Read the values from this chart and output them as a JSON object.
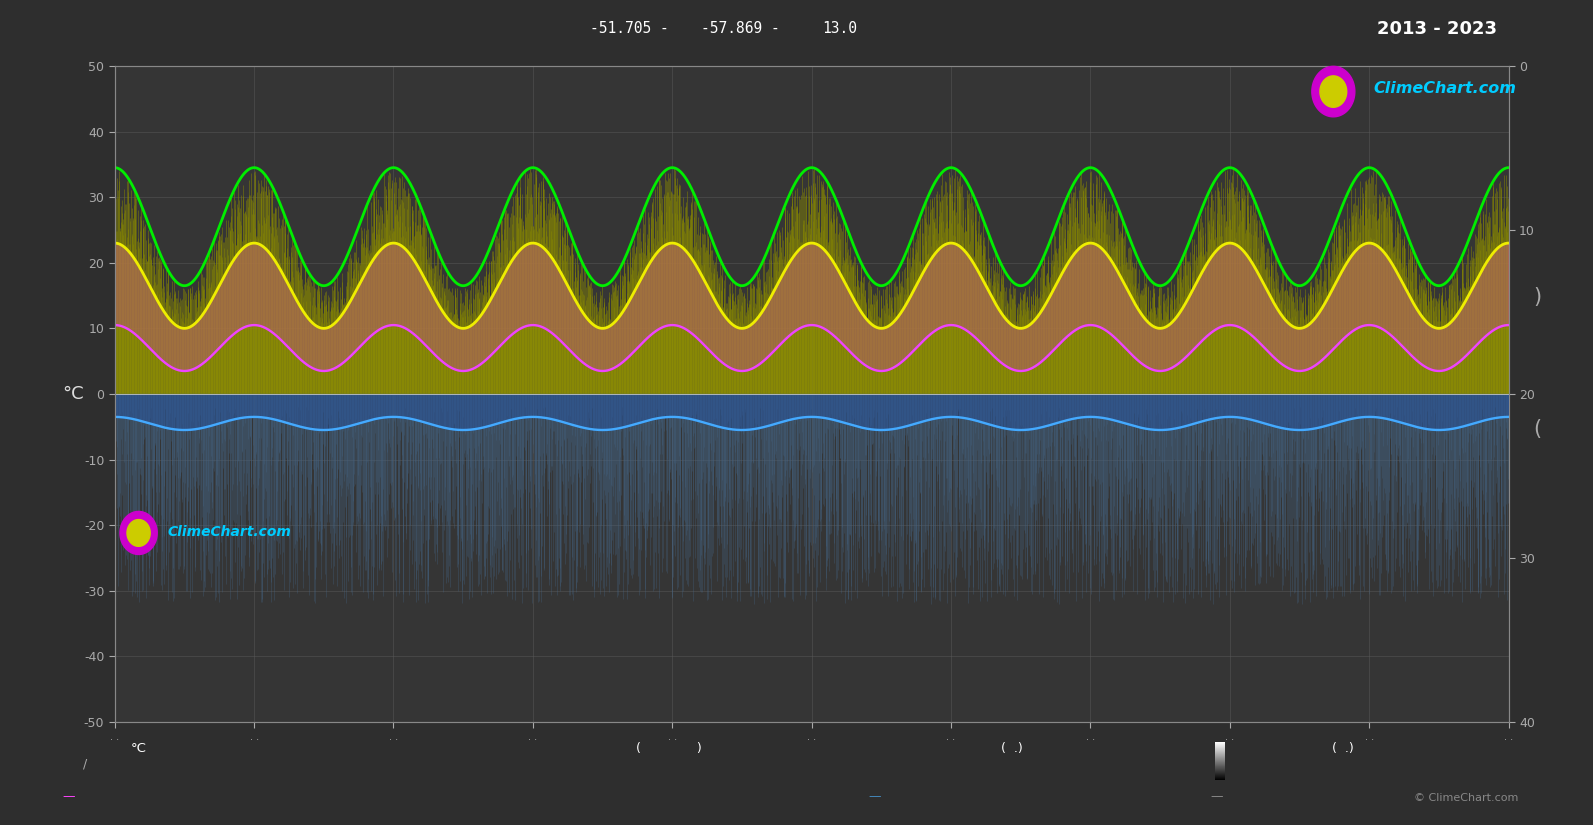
{
  "bg_color": "#2e2e2e",
  "plot_bg_color": "#353535",
  "grid_color": "#585858",
  "ylim_left": [
    -50,
    50
  ],
  "ylim_right": [
    40,
    0
  ],
  "green_line_color": "#00ee00",
  "yellow_line_color": "#eeee00",
  "magenta_line_color": "#ee44ff",
  "blue_line_color": "#44aaff",
  "top_coord1": "-51.705 -",
  "top_coord2": "-57.869 -",
  "top_coord3": "13.0",
  "year_text": "2013 - 2023",
  "copyright": "© ClimeChart.com",
  "green_max_summer": 34.5,
  "green_min_winter": 16.5,
  "yellow_max_summer": 23.0,
  "yellow_min_winter": 10.0,
  "magenta_max_summer": 10.5,
  "magenta_min_winter": 3.5,
  "blue_max_summer": -3.5,
  "blue_min_winter": -5.5,
  "n_years": 10,
  "seed": 42
}
